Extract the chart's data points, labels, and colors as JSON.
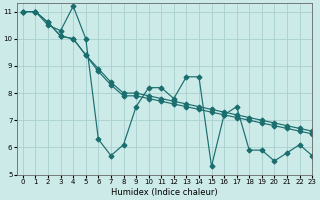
{
  "xlabel": "Humidex (Indice chaleur)",
  "xlim": [
    -0.5,
    23
  ],
  "ylim": [
    5,
    11.3
  ],
  "xticks": [
    0,
    1,
    2,
    3,
    4,
    5,
    6,
    7,
    8,
    9,
    10,
    11,
    12,
    13,
    14,
    15,
    16,
    17,
    18,
    19,
    20,
    21,
    22,
    23
  ],
  "yticks": [
    5,
    6,
    7,
    8,
    9,
    10,
    11
  ],
  "bg_color": "#cceae8",
  "grid_color": "#a8d0ce",
  "line_color": "#1a6e6e",
  "line1_x": [
    0,
    1,
    2,
    3,
    4,
    5,
    6,
    7,
    8,
    9,
    10,
    11,
    12,
    13,
    14,
    15,
    16,
    17,
    18,
    19,
    20,
    21,
    22,
    23
  ],
  "line1_y": [
    11,
    11,
    10.5,
    10.3,
    11.2,
    10.0,
    6.3,
    5.7,
    6.1,
    7.5,
    8.2,
    8.2,
    7.8,
    8.6,
    8.6,
    5.3,
    7.2,
    7.5,
    5.9,
    5.9,
    5.5,
    5.8,
    6.1,
    5.7
  ],
  "line2_x": [
    0,
    1,
    2,
    3,
    4,
    5,
    6,
    7,
    8,
    9,
    10,
    11,
    12,
    13,
    14,
    15,
    16,
    17,
    18,
    19,
    20,
    21,
    22,
    23
  ],
  "line2_y": [
    11,
    11,
    10.6,
    10.1,
    10.0,
    9.4,
    8.9,
    8.4,
    8.0,
    8.0,
    7.9,
    7.8,
    7.7,
    7.6,
    7.5,
    7.4,
    7.3,
    7.2,
    7.1,
    7.0,
    6.9,
    6.8,
    6.7,
    6.6
  ],
  "line3_x": [
    0,
    1,
    2,
    3,
    4,
    5,
    6,
    7,
    8,
    9,
    10,
    11,
    12,
    13,
    14,
    15,
    16,
    17,
    18,
    19,
    20,
    21,
    22,
    23
  ],
  "line3_y": [
    11,
    11,
    10.6,
    10.1,
    10.0,
    9.4,
    8.8,
    8.3,
    7.9,
    7.9,
    7.8,
    7.7,
    7.6,
    7.5,
    7.4,
    7.3,
    7.2,
    7.1,
    7.0,
    6.9,
    6.8,
    6.7,
    6.6,
    6.5
  ]
}
